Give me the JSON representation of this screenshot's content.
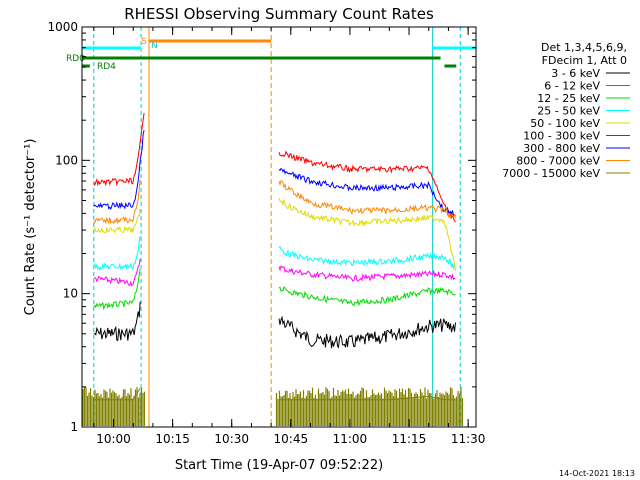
{
  "chart_data": {
    "type": "line",
    "title": "RHESSI Observing Summary Count Rates",
    "xlabel": "Start Time (19-Apr-07 09:52:22)",
    "ylabel": "Count Rate (s⁻¹ detector⁻¹)",
    "y_scale": "log",
    "ylim": [
      1,
      1000
    ],
    "xlim": [
      "09:52",
      "11:32"
    ],
    "x_ticks": [
      "10:00",
      "10:15",
      "10:30",
      "10:45",
      "11:00",
      "11:15",
      "11:30"
    ],
    "y_ticks": [
      "1",
      "10",
      "100",
      "1000"
    ],
    "timestamp": "14-Oct-2021 18:13",
    "legend": {
      "placement": "right",
      "header": [
        "Det 1,3,4,5,6,9,",
        "FDecim 1, Att 0"
      ]
    },
    "flag_labels": {
      "rd0": "RD0",
      "rd4": "RD4",
      "s": "S",
      "n": "N"
    },
    "series": [
      {
        "name": "3 - 6 keV",
        "color": "#000000",
        "x": [
          "09:55",
          "10:05",
          "10:06",
          "10:07",
          "10:42",
          "10:44",
          "10:50",
          "11:00",
          "11:10",
          "11:20",
          "11:24",
          "11:27"
        ],
        "y": [
          5.0,
          5.0,
          6.0,
          9.0,
          6.5,
          5.8,
          4.5,
          4.3,
          4.8,
          5.7,
          5.8,
          5.6
        ]
      },
      {
        "name": "6 - 12 keV",
        "color": "#ff00ff",
        "x": [
          "09:55",
          "10:05",
          "10:06",
          "10:07",
          "10:42",
          "10:44",
          "10:50",
          "11:00",
          "11:10",
          "11:20",
          "11:24",
          "11:27"
        ],
        "y": [
          13,
          12,
          14,
          20,
          16,
          15,
          14,
          13,
          13.5,
          14,
          14,
          13
        ]
      },
      {
        "name": "12 - 25 keV",
        "color": "#00dd00",
        "x": [
          "09:55",
          "10:05",
          "10:06",
          "10:07",
          "10:42",
          "10:44",
          "10:50",
          "11:00",
          "11:10",
          "11:20",
          "11:24",
          "11:27"
        ],
        "y": [
          8,
          8.5,
          11,
          18,
          11,
          10.5,
          9.5,
          8.5,
          9,
          10.5,
          10.5,
          10
        ]
      },
      {
        "name": "25 - 50 keV",
        "color": "#00ffff",
        "x": [
          "09:55",
          "10:05",
          "10:06",
          "10:07",
          "10:42",
          "10:44",
          "10:50",
          "11:00",
          "11:10",
          "11:20",
          "11:24",
          "11:27"
        ],
        "y": [
          16,
          16,
          19,
          30,
          22,
          20,
          18,
          17,
          17.5,
          19,
          19,
          15
        ]
      },
      {
        "name": "50 - 100 keV",
        "color": "#dddd00",
        "x": [
          "09:55",
          "10:05",
          "10:06",
          "10:07",
          "10:42",
          "10:44",
          "10:50",
          "11:00",
          "11:10",
          "11:20",
          "11:24",
          "11:27"
        ],
        "y": [
          30,
          30,
          34,
          45,
          52,
          46,
          38,
          34,
          35,
          37,
          36,
          14
        ]
      },
      {
        "name": "100 - 300 keV",
        "color": "#ff0000",
        "x": [
          "09:55",
          "10:05",
          "10:06",
          "10:07",
          "10:08",
          "10:42",
          "10:44",
          "10:50",
          "11:00",
          "11:10",
          "11:20",
          "11:24",
          "11:27"
        ],
        "y": [
          68,
          70,
          90,
          150,
          250,
          115,
          110,
          96,
          86,
          86,
          88,
          45,
          35
        ]
      },
      {
        "name": "300 - 800 keV",
        "color": "#0000ff",
        "x": [
          "09:55",
          "10:05",
          "10:06",
          "10:07",
          "10:08",
          "10:42",
          "10:44",
          "10:50",
          "11:00",
          "11:10",
          "11:20",
          "11:24",
          "11:27"
        ],
        "y": [
          45,
          46,
          60,
          110,
          200,
          85,
          80,
          70,
          62,
          62,
          65,
          42,
          40
        ]
      },
      {
        "name": "800 - 7000 keV",
        "color": "#ff8800",
        "x": [
          "09:55",
          "10:05",
          "10:06",
          "10:07",
          "10:42",
          "10:44",
          "10:50",
          "11:00",
          "11:10",
          "11:20",
          "11:24",
          "11:27"
        ],
        "y": [
          35,
          36,
          45,
          80,
          70,
          62,
          48,
          42,
          42,
          44,
          42,
          36
        ]
      },
      {
        "name": "7000 - 15000 keV",
        "color": "#808000",
        "x": [
          "09:55",
          "10:05",
          "10:06",
          "10:07",
          "10:42",
          "10:44",
          "10:50",
          "11:00",
          "11:10",
          "11:20",
          "11:24",
          "11:27"
        ],
        "y": [
          1.6,
          1.6,
          1.8,
          2.0,
          1.6,
          1.6,
          1.6,
          1.6,
          1.6,
          1.7,
          1.6,
          1.6
        ]
      }
    ]
  }
}
